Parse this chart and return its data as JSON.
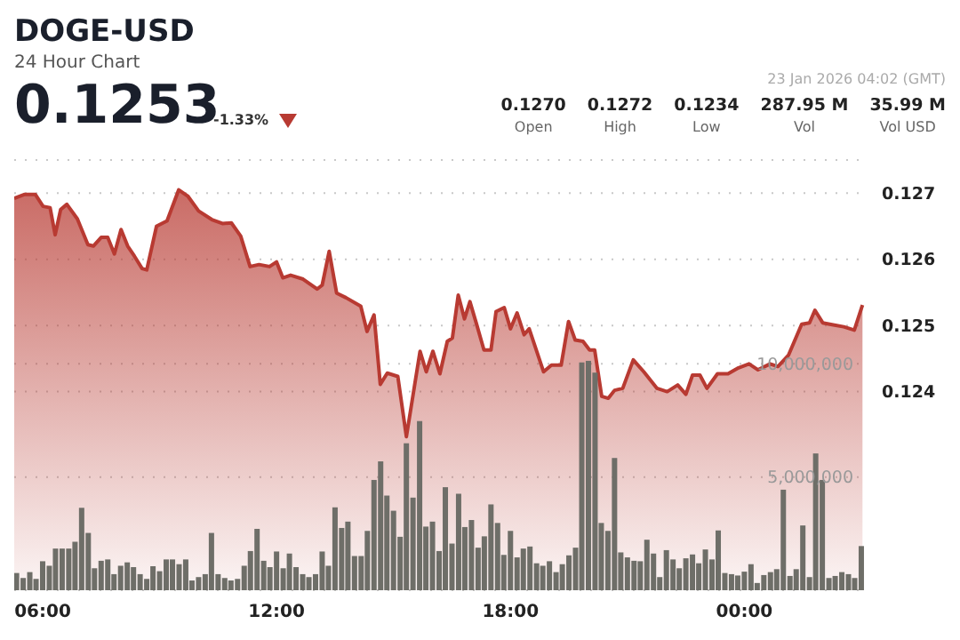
{
  "chart_data": {
    "type": "area",
    "title": "DOGE-USD",
    "subtitle": "24 Hour Chart",
    "annotations": [
      "0.1253",
      "-1.33%",
      "23 Jan 2026 04:02 (GMT)",
      "0.1270",
      "Open",
      "0.1272",
      "High",
      "0.1234",
      "Low",
      "287.95 M",
      "Vol",
      "35.99 M",
      "Vol USD"
    ],
    "xlim": [
      5.27,
      27.16
    ],
    "xticks": [
      {
        "value": 6,
        "label": "06:00"
      },
      {
        "value": 12,
        "label": "12:00"
      },
      {
        "value": 18,
        "label": "18:00"
      },
      {
        "value": 24,
        "label": "00:00"
      }
    ],
    "ylim": [
      0.121,
      0.1275
    ],
    "yticks": [
      0.124,
      0.125,
      0.126,
      0.127
    ],
    "y2lim": [
      0,
      19000000
    ],
    "y2ticks": [
      {
        "value": 5000000,
        "label": "5,000,000"
      },
      {
        "value": 10000000,
        "label": "10,000,000"
      }
    ],
    "grid": "y",
    "series": [
      {
        "color": "#b83a32",
        "x": [
          5.27,
          5.54,
          5.81,
          6.01,
          6.19,
          6.32,
          6.46,
          6.62,
          6.89,
          7.16,
          7.3,
          7.5,
          7.67,
          7.84,
          8.01,
          8.18,
          8.35,
          8.55,
          8.67,
          8.92,
          9.19,
          9.49,
          9.73,
          10.0,
          10.34,
          10.61,
          10.84,
          11.08,
          11.32,
          11.55,
          11.82,
          12.0,
          12.16,
          12.36,
          12.68,
          13.04,
          13.17,
          13.35,
          13.54,
          13.78,
          14.16,
          14.32,
          14.5,
          14.66,
          14.84,
          15.11,
          15.33,
          15.68,
          15.84,
          16.01,
          16.19,
          16.38,
          16.51,
          16.66,
          16.82,
          16.96,
          17.13,
          17.32,
          17.5,
          17.63,
          17.84,
          18.0,
          18.17,
          18.35,
          18.48,
          18.85,
          19.05,
          19.3,
          19.49,
          19.66,
          19.86,
          20.03,
          20.16,
          20.34,
          20.51,
          20.67,
          20.88,
          21.15,
          21.42,
          21.76,
          22.02,
          22.29,
          22.5,
          22.67,
          22.86,
          23.04,
          23.31,
          23.58,
          23.85,
          24.12,
          24.35,
          24.66,
          24.86,
          25.13,
          25.47,
          25.67,
          25.81,
          26.01,
          26.28,
          26.55,
          26.82,
          27.03
        ],
        "values": [
          0.12692,
          0.12698,
          0.12698,
          0.1268,
          0.12678,
          0.12637,
          0.12675,
          0.12683,
          0.12661,
          0.12622,
          0.1262,
          0.12633,
          0.12633,
          0.12608,
          0.12645,
          0.1262,
          0.12605,
          0.12586,
          0.12584,
          0.1265,
          0.12658,
          0.12705,
          0.12695,
          0.12673,
          0.1266,
          0.12654,
          0.12655,
          0.12635,
          0.12589,
          0.12592,
          0.12589,
          0.12596,
          0.12572,
          0.12576,
          0.1257,
          0.12555,
          0.12561,
          0.12612,
          0.12549,
          0.12542,
          0.12529,
          0.12491,
          0.12516,
          0.12411,
          0.12428,
          0.12423,
          0.12332,
          0.12461,
          0.1243,
          0.12461,
          0.12427,
          0.12476,
          0.12481,
          0.12546,
          0.1251,
          0.12536,
          0.12502,
          0.12463,
          0.12463,
          0.12521,
          0.12527,
          0.12495,
          0.12519,
          0.12486,
          0.12495,
          0.1243,
          0.1244,
          0.1244,
          0.12506,
          0.12478,
          0.12476,
          0.12463,
          0.12463,
          0.12393,
          0.1239,
          0.12402,
          0.12405,
          0.12448,
          0.1243,
          0.12405,
          0.124,
          0.1241,
          0.12396,
          0.12425,
          0.12425,
          0.12405,
          0.12427,
          0.12427,
          0.12436,
          0.12442,
          0.12433,
          0.12442,
          0.12438,
          0.12455,
          0.12502,
          0.12504,
          0.12523,
          0.12504,
          0.12501,
          0.12498,
          0.12493,
          0.12531
        ]
      },
      {
        "type": "bar",
        "axis": "y2",
        "color": "#6e6e68",
        "x": [
          5.33,
          5.5,
          5.67,
          5.83,
          6,
          6.17,
          6.33,
          6.5,
          6.67,
          6.83,
          7,
          7.17,
          7.33,
          7.5,
          7.67,
          7.83,
          8,
          8.17,
          8.33,
          8.5,
          8.67,
          8.83,
          9,
          9.17,
          9.33,
          9.5,
          9.67,
          9.83,
          10,
          10.17,
          10.33,
          10.5,
          10.67,
          10.83,
          11,
          11.17,
          11.33,
          11.5,
          11.67,
          11.83,
          12,
          12.17,
          12.33,
          12.5,
          12.67,
          12.83,
          13,
          13.17,
          13.33,
          13.5,
          13.67,
          13.83,
          14,
          14.17,
          14.33,
          14.5,
          14.67,
          14.83,
          15,
          15.17,
          15.33,
          15.5,
          15.67,
          15.83,
          16,
          16.17,
          16.33,
          16.5,
          16.67,
          16.83,
          17,
          17.17,
          17.33,
          17.5,
          17.67,
          17.83,
          18,
          18.17,
          18.33,
          18.5,
          18.67,
          18.83,
          19,
          19.17,
          19.33,
          19.5,
          19.67,
          19.83,
          20,
          20.17,
          20.33,
          20.5,
          20.67,
          20.83,
          21,
          21.17,
          21.33,
          21.5,
          21.67,
          21.83,
          22,
          22.17,
          22.33,
          22.5,
          22.67,
          22.83,
          23,
          23.17,
          23.33,
          23.5,
          23.67,
          23.83,
          24,
          24.17,
          24.33,
          24.5,
          24.67,
          24.83,
          25,
          25.17,
          25.33,
          25.5,
          25.67,
          25.83,
          26,
          26.17,
          26.33,
          26.5,
          26.67,
          26.83,
          27
        ],
        "values": [
          760000,
          540000,
          800000,
          500000,
          1280000,
          1080000,
          1840000,
          1840000,
          1840000,
          2140000,
          3640000,
          2530000,
          970000,
          1300000,
          1360000,
          710000,
          1080000,
          1230000,
          1020000,
          710000,
          500000,
          1060000,
          840000,
          1360000,
          1360000,
          1150000,
          1360000,
          430000,
          580000,
          710000,
          2530000,
          710000,
          540000,
          430000,
          500000,
          1080000,
          1730000,
          2710000,
          1300000,
          1020000,
          1710000,
          970000,
          1620000,
          1020000,
          710000,
          580000,
          710000,
          1710000,
          1080000,
          3660000,
          2750000,
          3030000,
          1510000,
          1510000,
          2620000,
          4870000,
          5690000,
          4180000,
          3510000,
          2360000,
          6490000,
          4090000,
          7470000,
          2810000,
          3030000,
          1730000,
          4550000,
          2060000,
          4260000,
          2790000,
          3100000,
          1880000,
          2380000,
          3790000,
          2970000,
          1560000,
          2620000,
          1450000,
          1840000,
          1930000,
          1190000,
          1080000,
          1280000,
          800000,
          1150000,
          1540000,
          1880000,
          10060000,
          10130000,
          9610000,
          2970000,
          2620000,
          5840000,
          1670000,
          1450000,
          1300000,
          1280000,
          2230000,
          1620000,
          580000,
          1770000,
          1360000,
          970000,
          1410000,
          1580000,
          1190000,
          1800000,
          1360000,
          2640000,
          760000,
          710000,
          650000,
          820000,
          1150000,
          320000,
          670000,
          800000,
          930000,
          4440000,
          630000,
          930000,
          2860000,
          580000,
          6040000,
          4870000,
          540000,
          630000,
          800000,
          710000,
          540000,
          1950000
        ]
      }
    ]
  }
}
